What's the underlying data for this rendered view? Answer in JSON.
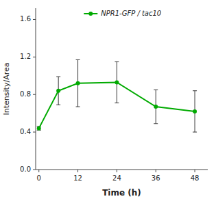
{
  "chart_data": {
    "type": "line",
    "xlabel": "Time (h)",
    "ylabel": "Intensity/Area",
    "x": [
      0,
      6,
      12,
      24,
      36,
      48
    ],
    "series": [
      {
        "name": "NPR1-GFP / tac10",
        "color": "#00aa00",
        "marker": "circle",
        "values": [
          0.44,
          0.84,
          0.92,
          0.93,
          0.67,
          0.62
        ],
        "errors": [
          0.02,
          0.15,
          0.25,
          0.22,
          0.18,
          0.22
        ]
      }
    ],
    "xlim": [
      -1,
      52
    ],
    "ylim": [
      0.0,
      1.72
    ],
    "xticks": [
      0,
      12,
      24,
      36,
      48
    ],
    "yticks": [
      {
        "value": 0.0,
        "label": "0.0"
      },
      0.4,
      0.8,
      1.2,
      1.6
    ],
    "grid": false,
    "legend": "upper left"
  }
}
